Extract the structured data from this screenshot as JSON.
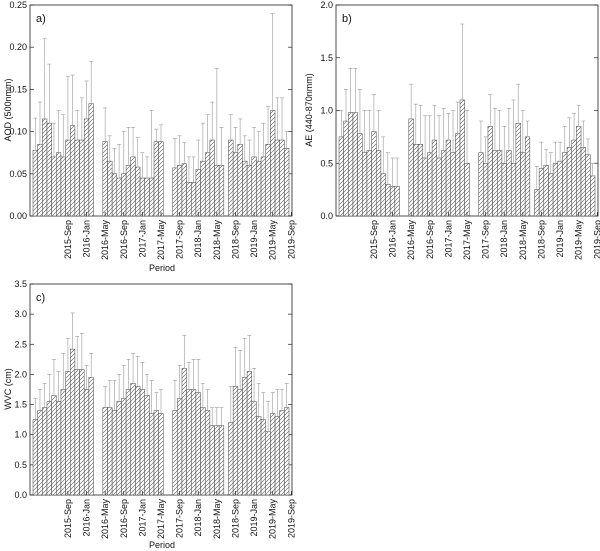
{
  "chart_data": [
    {
      "type": "bar",
      "panel_label": "a)",
      "ylabel": "AOD (500nmm)",
      "xlabel": "Period",
      "ylim": [
        0,
        0.25
      ],
      "yticks": [
        "0.00",
        "0.05",
        "0.10",
        "0.15",
        "0.20",
        "0.25"
      ],
      "xtick_labels": [
        "2015-Sep",
        "2016-Jan",
        "2016-May",
        "2016-Sep",
        "2017-Jan",
        "2017-May",
        "2017-Sep",
        "2018-Jan",
        "2018-May",
        "2018-Sep",
        "2019-Jan",
        "2019-May",
        "2019-Sep"
      ],
      "values": [
        0.078,
        0.085,
        0.115,
        0.11,
        0.07,
        0.075,
        0.07,
        0.09,
        0.107,
        0.09,
        0.09,
        0.115,
        0.133,
        null,
        null,
        0.088,
        0.065,
        0.05,
        0.045,
        0.05,
        0.06,
        0.07,
        0.058,
        0.045,
        0.045,
        0.045,
        0.088,
        0.088,
        null,
        null,
        0.057,
        0.06,
        0.062,
        0.04,
        0.04,
        0.055,
        0.065,
        0.075,
        0.09,
        0.06,
        0.06,
        null,
        0.09,
        0.075,
        0.085,
        0.065,
        0.06,
        0.07,
        0.065,
        0.07,
        0.085,
        0.125,
        0.09,
        0.09,
        0.08
      ],
      "errors": [
        0.038,
        0.05,
        0.095,
        0.07,
        0.04,
        0.05,
        0.05,
        0.075,
        0.06,
        0.035,
        0.05,
        0.045,
        0.05,
        null,
        null,
        0.04,
        0.03,
        0.03,
        0.04,
        0.05,
        0.045,
        0.035,
        0.035,
        0.03,
        0.025,
        0.08,
        0.015,
        0.02,
        null,
        null,
        0.035,
        0.035,
        0.025,
        0.03,
        0.03,
        0.035,
        0.045,
        0.045,
        0.045,
        0.115,
        0.045,
        null,
        0.03,
        0.03,
        0.03,
        0.03,
        0.03,
        0.035,
        0.035,
        0.04,
        0.045,
        0.115,
        0.05,
        0.05,
        0.02
      ]
    },
    {
      "type": "bar",
      "panel_label": "b)",
      "ylabel": "AE (440-870nmm)",
      "xlabel": "",
      "ylim": [
        0,
        2.0
      ],
      "yticks": [
        "0.0",
        "0.5",
        "1.0",
        "1.5",
        "2.0"
      ],
      "xtick_labels": [
        "2015-Sep",
        "2016-Jan",
        "2016-May",
        "2016-Sep",
        "2017-Jan",
        "2017-May",
        "2017-Sep",
        "2018-Jan",
        "2018-May",
        "2018-Sep",
        "2019-Jan",
        "2019-May",
        "2019-Sep"
      ],
      "values": [
        0.75,
        0.9,
        0.98,
        0.98,
        0.78,
        0.6,
        0.62,
        0.8,
        0.62,
        0.4,
        0.3,
        0.28,
        0.28,
        null,
        null,
        0.92,
        0.68,
        0.68,
        0.55,
        0.6,
        0.72,
        0.55,
        0.62,
        0.72,
        0.6,
        0.78,
        1.1,
        0.5,
        null,
        null,
        0.6,
        0.5,
        0.85,
        0.62,
        0.62,
        0.5,
        0.62,
        0.5,
        0.88,
        0.6,
        0.75,
        null,
        0.25,
        0.45,
        0.48,
        0.4,
        0.5,
        0.52,
        0.6,
        0.65,
        0.72,
        0.85,
        0.65,
        0.58,
        0.38
      ],
      "errors": [
        0.25,
        0.3,
        0.42,
        0.42,
        0.42,
        0.4,
        0.38,
        0.35,
        0.38,
        0.35,
        0.3,
        0.27,
        0.27,
        null,
        null,
        0.33,
        0.38,
        0.37,
        0.4,
        0.35,
        0.33,
        0.4,
        0.4,
        0.25,
        0.4,
        0.3,
        0.72,
        0.5,
        null,
        null,
        0.3,
        0.25,
        0.3,
        0.4,
        0.38,
        0.35,
        0.4,
        0.6,
        0.37,
        0.4,
        0.15,
        null,
        0.22,
        0.25,
        0.15,
        0.2,
        0.2,
        0.18,
        0.25,
        0.28,
        0.25,
        0.2,
        0.25,
        0.15,
        0.12
      ]
    },
    {
      "type": "bar",
      "panel_label": "c)",
      "ylabel": "WVC (cm)",
      "xlabel": "Period",
      "ylim": [
        0,
        3.5
      ],
      "yticks": [
        "0.0",
        "0.5",
        "1.0",
        "1.5",
        "2.0",
        "2.5",
        "3.0",
        "3.5"
      ],
      "xtick_labels": [
        "2015-Sep",
        "2016-Jan",
        "2016-May",
        "2016-Sep",
        "2017-Jan",
        "2017-May",
        "2017-Sep",
        "2018-Jan",
        "2018-May",
        "2018-Sep",
        "2019-Jan",
        "2019-May",
        "2019-Sep"
      ],
      "values": [
        1.25,
        1.4,
        1.45,
        1.55,
        1.65,
        1.55,
        1.75,
        2.05,
        2.42,
        2.08,
        2.08,
        1.75,
        1.95,
        null,
        null,
        1.45,
        1.45,
        1.4,
        1.55,
        1.6,
        1.75,
        1.85,
        1.8,
        1.75,
        1.65,
        1.35,
        1.4,
        1.35,
        null,
        null,
        1.4,
        1.6,
        2.1,
        1.75,
        1.75,
        1.7,
        1.45,
        1.4,
        1.15,
        1.15,
        1.15,
        null,
        1.2,
        1.8,
        1.75,
        1.95,
        2.05,
        1.55,
        1.3,
        1.25,
        1.05,
        1.35,
        1.3,
        1.4,
        1.45
      ],
      "errors": [
        0.35,
        0.35,
        0.4,
        0.45,
        0.6,
        0.5,
        0.6,
        0.55,
        0.6,
        0.55,
        0.6,
        0.4,
        0.4,
        null,
        null,
        0.35,
        0.45,
        0.5,
        0.45,
        0.55,
        0.5,
        0.5,
        0.5,
        0.45,
        0.35,
        0.55,
        0.3,
        0.4,
        null,
        null,
        0.5,
        0.55,
        0.55,
        0.45,
        0.5,
        0.55,
        0.4,
        0.35,
        0.3,
        0.3,
        0.3,
        null,
        0.6,
        0.65,
        0.65,
        0.65,
        0.6,
        0.55,
        0.55,
        0.45,
        0.5,
        0.35,
        0.45,
        0.35,
        0.4
      ]
    }
  ]
}
